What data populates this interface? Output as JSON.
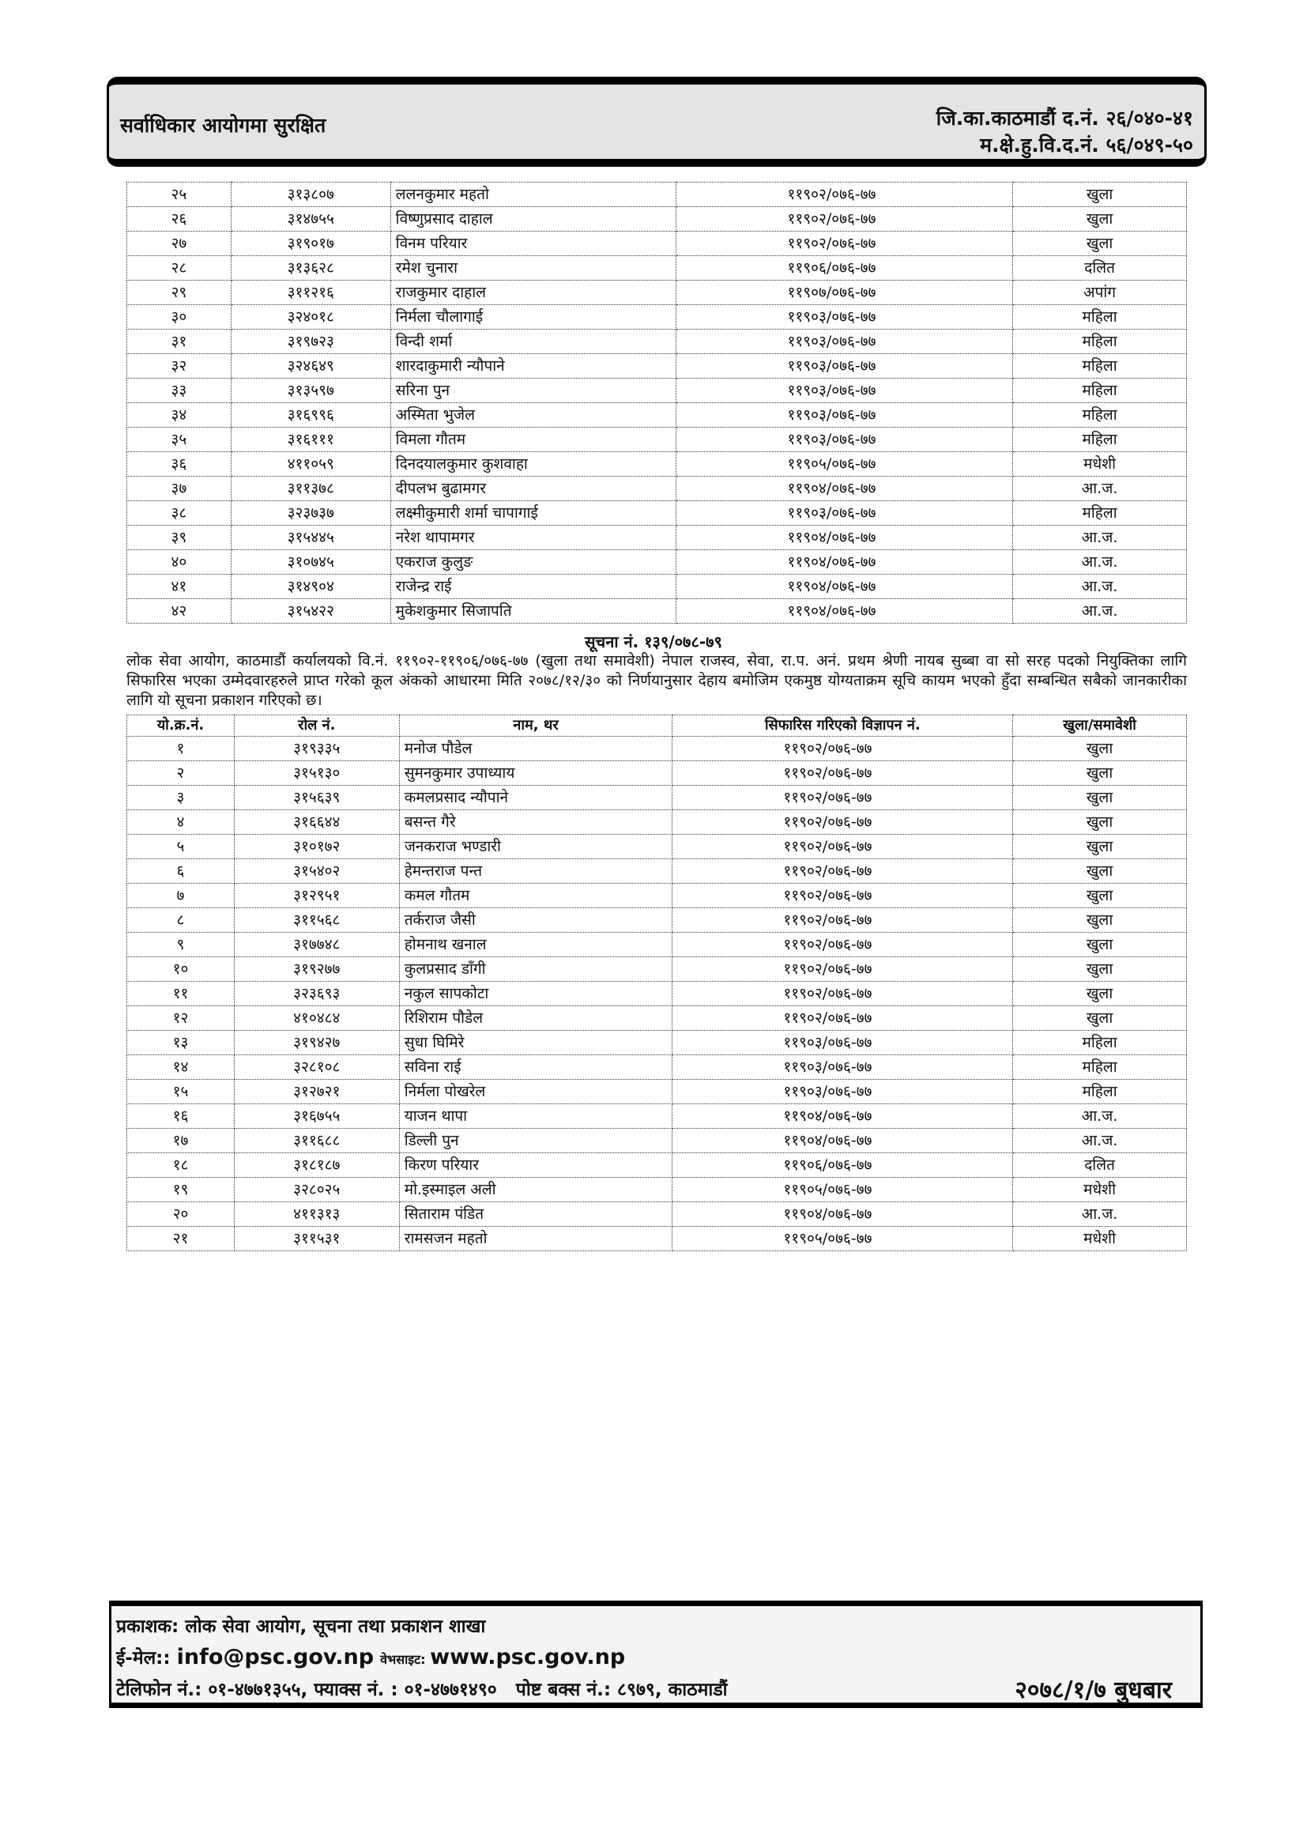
{
  "header": {
    "left": "सर्वाधिकार आयोगमा सुरक्षित",
    "right_line1": "जि.का.काठमाडौं द.नं. २६/०४०-४१",
    "right_line2": "म.क्षे.हु.वि.द.नं. ५६/०४९-५०"
  },
  "table1": {
    "rows": [
      [
        "२५",
        "३१३८०७",
        "ललनकुमार महतो",
        "११९०२/०७६-७७",
        "खुला"
      ],
      [
        "२६",
        "३१४७५५",
        "विष्णुप्रसाद दाहाल",
        "११९०२/०७६-७७",
        "खुला"
      ],
      [
        "२७",
        "३१९०१७",
        "विनम परियार",
        "११९०२/०७६-७७",
        "खुला"
      ],
      [
        "२८",
        "३१३६२८",
        "रमेश चुनारा",
        "११९०६/०७६-७७",
        "दलित"
      ],
      [
        "२९",
        "३११२१६",
        "राजकुमार दाहाल",
        "११९०७/०७६-७७",
        "अपांग"
      ],
      [
        "३०",
        "३२४०१८",
        "निर्मला चौलागाई",
        "११९०३/०७६-७७",
        "महिला"
      ],
      [
        "३१",
        "३१९७२३",
        "विन्दी शर्मा",
        "११९०३/०७६-७७",
        "महिला"
      ],
      [
        "३२",
        "३२४६४९",
        "शारदाकुमारी न्यौपाने",
        "११९०३/०७६-७७",
        "महिला"
      ],
      [
        "३३",
        "३१३५९७",
        "सरिना पुन",
        "११९०३/०७६-७७",
        "महिला"
      ],
      [
        "३४",
        "३१६९९६",
        "अस्मिता भुजेल",
        "११९०३/०७६-७७",
        "महिला"
      ],
      [
        "३५",
        "३१६१११",
        "विमला गौतम",
        "११९०३/०७६-७७",
        "महिला"
      ],
      [
        "३६",
        "४११०५९",
        "दिनदयालकुमार कुशवाहा",
        "११९०५/०७६-७७",
        "मधेशी"
      ],
      [
        "३७",
        "३११३७८",
        "दीपलभ बुढामगर",
        "११९०४/०७६-७७",
        "आ.ज."
      ],
      [
        "३८",
        "३२३७३७",
        "लक्ष्मीकुमारी शर्मा चापागाई",
        "११९०३/०७६-७७",
        "महिला"
      ],
      [
        "३९",
        "३१५४४५",
        "नरेश थापामगर",
        "११९०४/०७६-७७",
        "आ.ज."
      ],
      [
        "४०",
        "३१०७४५",
        "एकराज कुलुङ",
        "११९०४/०७६-७७",
        "आ.ज."
      ],
      [
        "४१",
        "३१४९०४",
        "राजेन्द्र राई",
        "११९०४/०७६-७७",
        "आ.ज."
      ],
      [
        "४२",
        "३१५४२२",
        "मुकेशकुमार सिजापति",
        "११९०४/०७६-७७",
        "आ.ज."
      ]
    ]
  },
  "notice": {
    "title": "सूचना नं. १३९/०७८-७९",
    "body": "लोक सेवा आयोग, काठमाडौं कर्यालयको वि.नं. ११९०२-११९०६/०७६-७७ (खुला तथा समावेशी) नेपाल राजस्व, सेवा, रा.प. अनं. प्रथम श्रेणी नायब सुब्बा वा सो सरह पदको नियुक्तिका लागि सिफारिस भएका उम्मेदवारहरुले प्राप्त गरेको कूल अंकको आधारमा मिति २०७८/१२/३० को निर्णयानुसार देहाय बमोजिम एकमुष्ठ योग्यताक्रम सूचि कायम भएको हुँदा सम्बन्धित सबैको जानकारीका लागि यो सूचना प्रकाशन गरिएको छ।"
  },
  "table2": {
    "headers": [
      "यो.क्र.नं.",
      "रोल नं.",
      "नाम, थर",
      "सिफारिस गरिएको विज्ञापन नं.",
      "खुला/समावेशी"
    ],
    "rows": [
      [
        "१",
        "३१९३३५",
        "मनोज पौडेल",
        "११९०२/०७६-७७",
        "खुला"
      ],
      [
        "२",
        "३१५१३०",
        "सुमनकुमार उपाध्याय",
        "११९०२/०७६-७७",
        "खुला"
      ],
      [
        "३",
        "३१५६३९",
        "कमलप्रसाद न्यौपाने",
        "११९०२/०७६-७७",
        "खुला"
      ],
      [
        "४",
        "३१६६४४",
        "बसन्त गैरे",
        "११९०२/०७६-७७",
        "खुला"
      ],
      [
        "५",
        "३१०१७२",
        "जनकराज भण्डारी",
        "११९०२/०७६-७७",
        "खुला"
      ],
      [
        "६",
        "३१५४०२",
        "हेमन्तराज पन्त",
        "११९०२/०७६-७७",
        "खुला"
      ],
      [
        "७",
        "३१२९५१",
        "कमल गौतम",
        "११९०२/०७६-७७",
        "खुला"
      ],
      [
        "८",
        "३११५६८",
        "तर्कराज जैसी",
        "११९०२/०७६-७७",
        "खुला"
      ],
      [
        "९",
        "३१७७४८",
        "होमनाथ खनाल",
        "११९०२/०७६-७७",
        "खुला"
      ],
      [
        "१०",
        "३१९२७७",
        "कुलप्रसाद डाँगी",
        "११९०२/०७६-७७",
        "खुला"
      ],
      [
        "११",
        "३२३६९३",
        "नकुल सापकोटा",
        "११९०२/०७६-७७",
        "खुला"
      ],
      [
        "१२",
        "४१०४८४",
        "रिशिराम पौडेल",
        "११९०२/०७६-७७",
        "खुला"
      ],
      [
        "१३",
        "३१९४२७",
        "सुधा घिमिरे",
        "११९०३/०७६-७७",
        "महिला"
      ],
      [
        "१४",
        "३२८१०८",
        "सविना राई",
        "११९०३/०७६-७७",
        "महिला"
      ],
      [
        "१५",
        "३१२७२१",
        "निर्मला पोखरेल",
        "११९०३/०७६-७७",
        "महिला"
      ],
      [
        "१६",
        "३१६७५५",
        "याजन थापा",
        "११९०४/०७६-७७",
        "आ.ज."
      ],
      [
        "१७",
        "३११६८८",
        "डिल्ली पुन",
        "११९०४/०७६-७७",
        "आ.ज."
      ],
      [
        "१८",
        "३१८१८७",
        "किरण परियार",
        "११९०६/०७६-७७",
        "दलित"
      ],
      [
        "१९",
        "३२८०२५",
        "मो.इस्माइल अली",
        "११९०५/०७६-७७",
        "मधेशी"
      ],
      [
        "२०",
        "४११३१३",
        "सिताराम पंडित",
        "११९०४/०७६-७७",
        "आ.ज."
      ],
      [
        "२१",
        "३११५३१",
        "रामसजन महतो",
        "११९०५/०७६-७७",
        "मधेशी"
      ]
    ]
  },
  "footer": {
    "publisher": "प्रकाशक: लोक सेवा आयोग, सूचना तथा प्रकाशन शाखा",
    "email_label": "ई-मेल:: ",
    "email": "info@psc.gov.np",
    "website_label": "वेभसाइट: ",
    "website": "www.psc.gov.np",
    "contact": "टेलिफोन नं.: ०१-४७७१३५५, फ्याक्स नं. : ०१-४७७१४९०   पोष्ट बक्स नं.: ८९७९, काठमाडौं",
    "date": "२०७८/१/७ बुधबार"
  }
}
